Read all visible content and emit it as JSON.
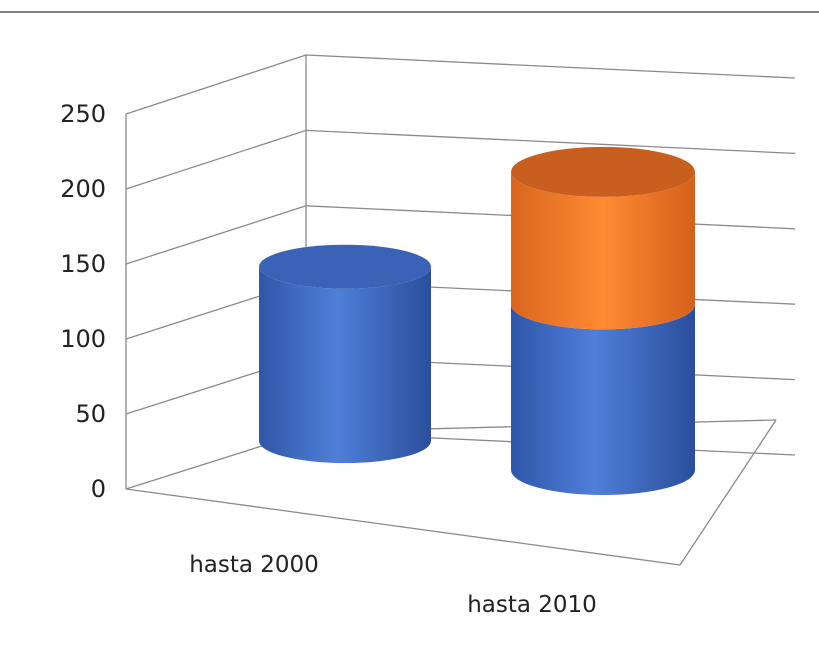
{
  "chart_data": {
    "type": "bar",
    "style": "3d-stacked-cylinder",
    "categories": [
      "hasta 2000",
      "hasta 2010"
    ],
    "series": [
      {
        "color": "#4472c4",
        "values": [
          140,
          125
        ]
      },
      {
        "color": "#ed7d31",
        "values": [
          0,
          100
        ]
      }
    ],
    "y_ticks": [
      "0",
      "50",
      "100",
      "150",
      "200",
      "250"
    ],
    "ylim": [
      0,
      250
    ],
    "grid": true,
    "legend": "none"
  }
}
